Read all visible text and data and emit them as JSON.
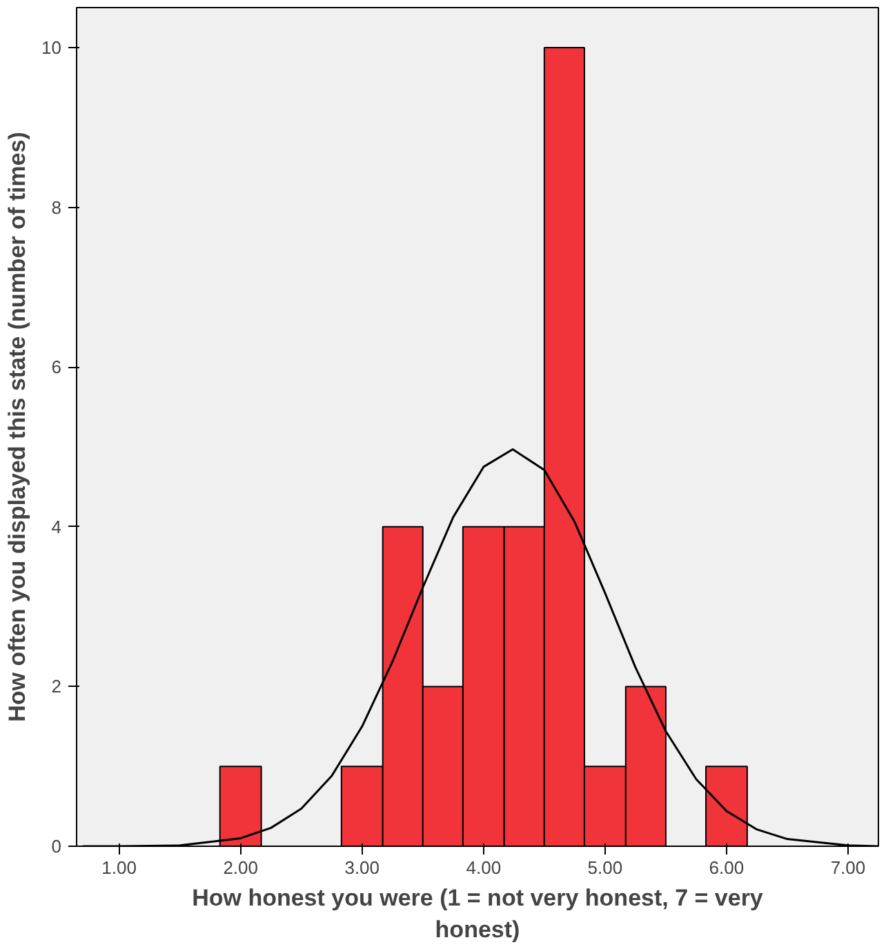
{
  "chart_data": {
    "type": "histogram",
    "xlabel": "How honest you were (1 = not very honest, 7 = very honest)",
    "ylabel": "How often you displayed this state (number of times)",
    "bins": [
      1.83,
      2.17,
      2.83,
      3.17,
      3.5,
      3.83,
      4.17,
      4.5,
      4.83,
      5.17,
      5.5,
      5.83,
      6.17
    ],
    "values": [
      1,
      0,
      1,
      4,
      2,
      4,
      4,
      10,
      1,
      2,
      0,
      1
    ],
    "color": "#f0343a",
    "series": [
      {
        "type": "line",
        "color": "#000000",
        "x": [
          0.7,
          1.0,
          1.5,
          2.0,
          2.25,
          2.5,
          2.75,
          3.0,
          3.25,
          3.5,
          3.75,
          4.0,
          4.24,
          4.5,
          4.75,
          5.0,
          5.25,
          5.5,
          5.75,
          6.0,
          6.25,
          6.5,
          7.0,
          7.25
        ],
        "values": [
          0,
          0,
          0.01,
          0.1,
          0.23,
          0.47,
          0.88,
          1.5,
          2.31,
          3.24,
          4.12,
          4.75,
          4.97,
          4.71,
          4.06,
          3.17,
          2.24,
          1.44,
          0.84,
          0.44,
          0.21,
          0.09,
          0.01,
          0
        ]
      }
    ],
    "xlim": [
      0.65,
      7.25
    ],
    "ylim": [
      0,
      10.5
    ],
    "xticks": [
      {
        "value": 1,
        "label": "1.00"
      },
      {
        "value": 2,
        "label": "2.00"
      },
      {
        "value": 3,
        "label": "3.00"
      },
      {
        "value": 4,
        "label": "4.00"
      },
      {
        "value": 5,
        "label": "5.00"
      },
      {
        "value": 6,
        "label": "6.00"
      },
      {
        "value": 7,
        "label": "7.00"
      }
    ],
    "yticks": [
      0,
      2,
      4,
      6,
      8,
      10
    ],
    "grid": false
  }
}
